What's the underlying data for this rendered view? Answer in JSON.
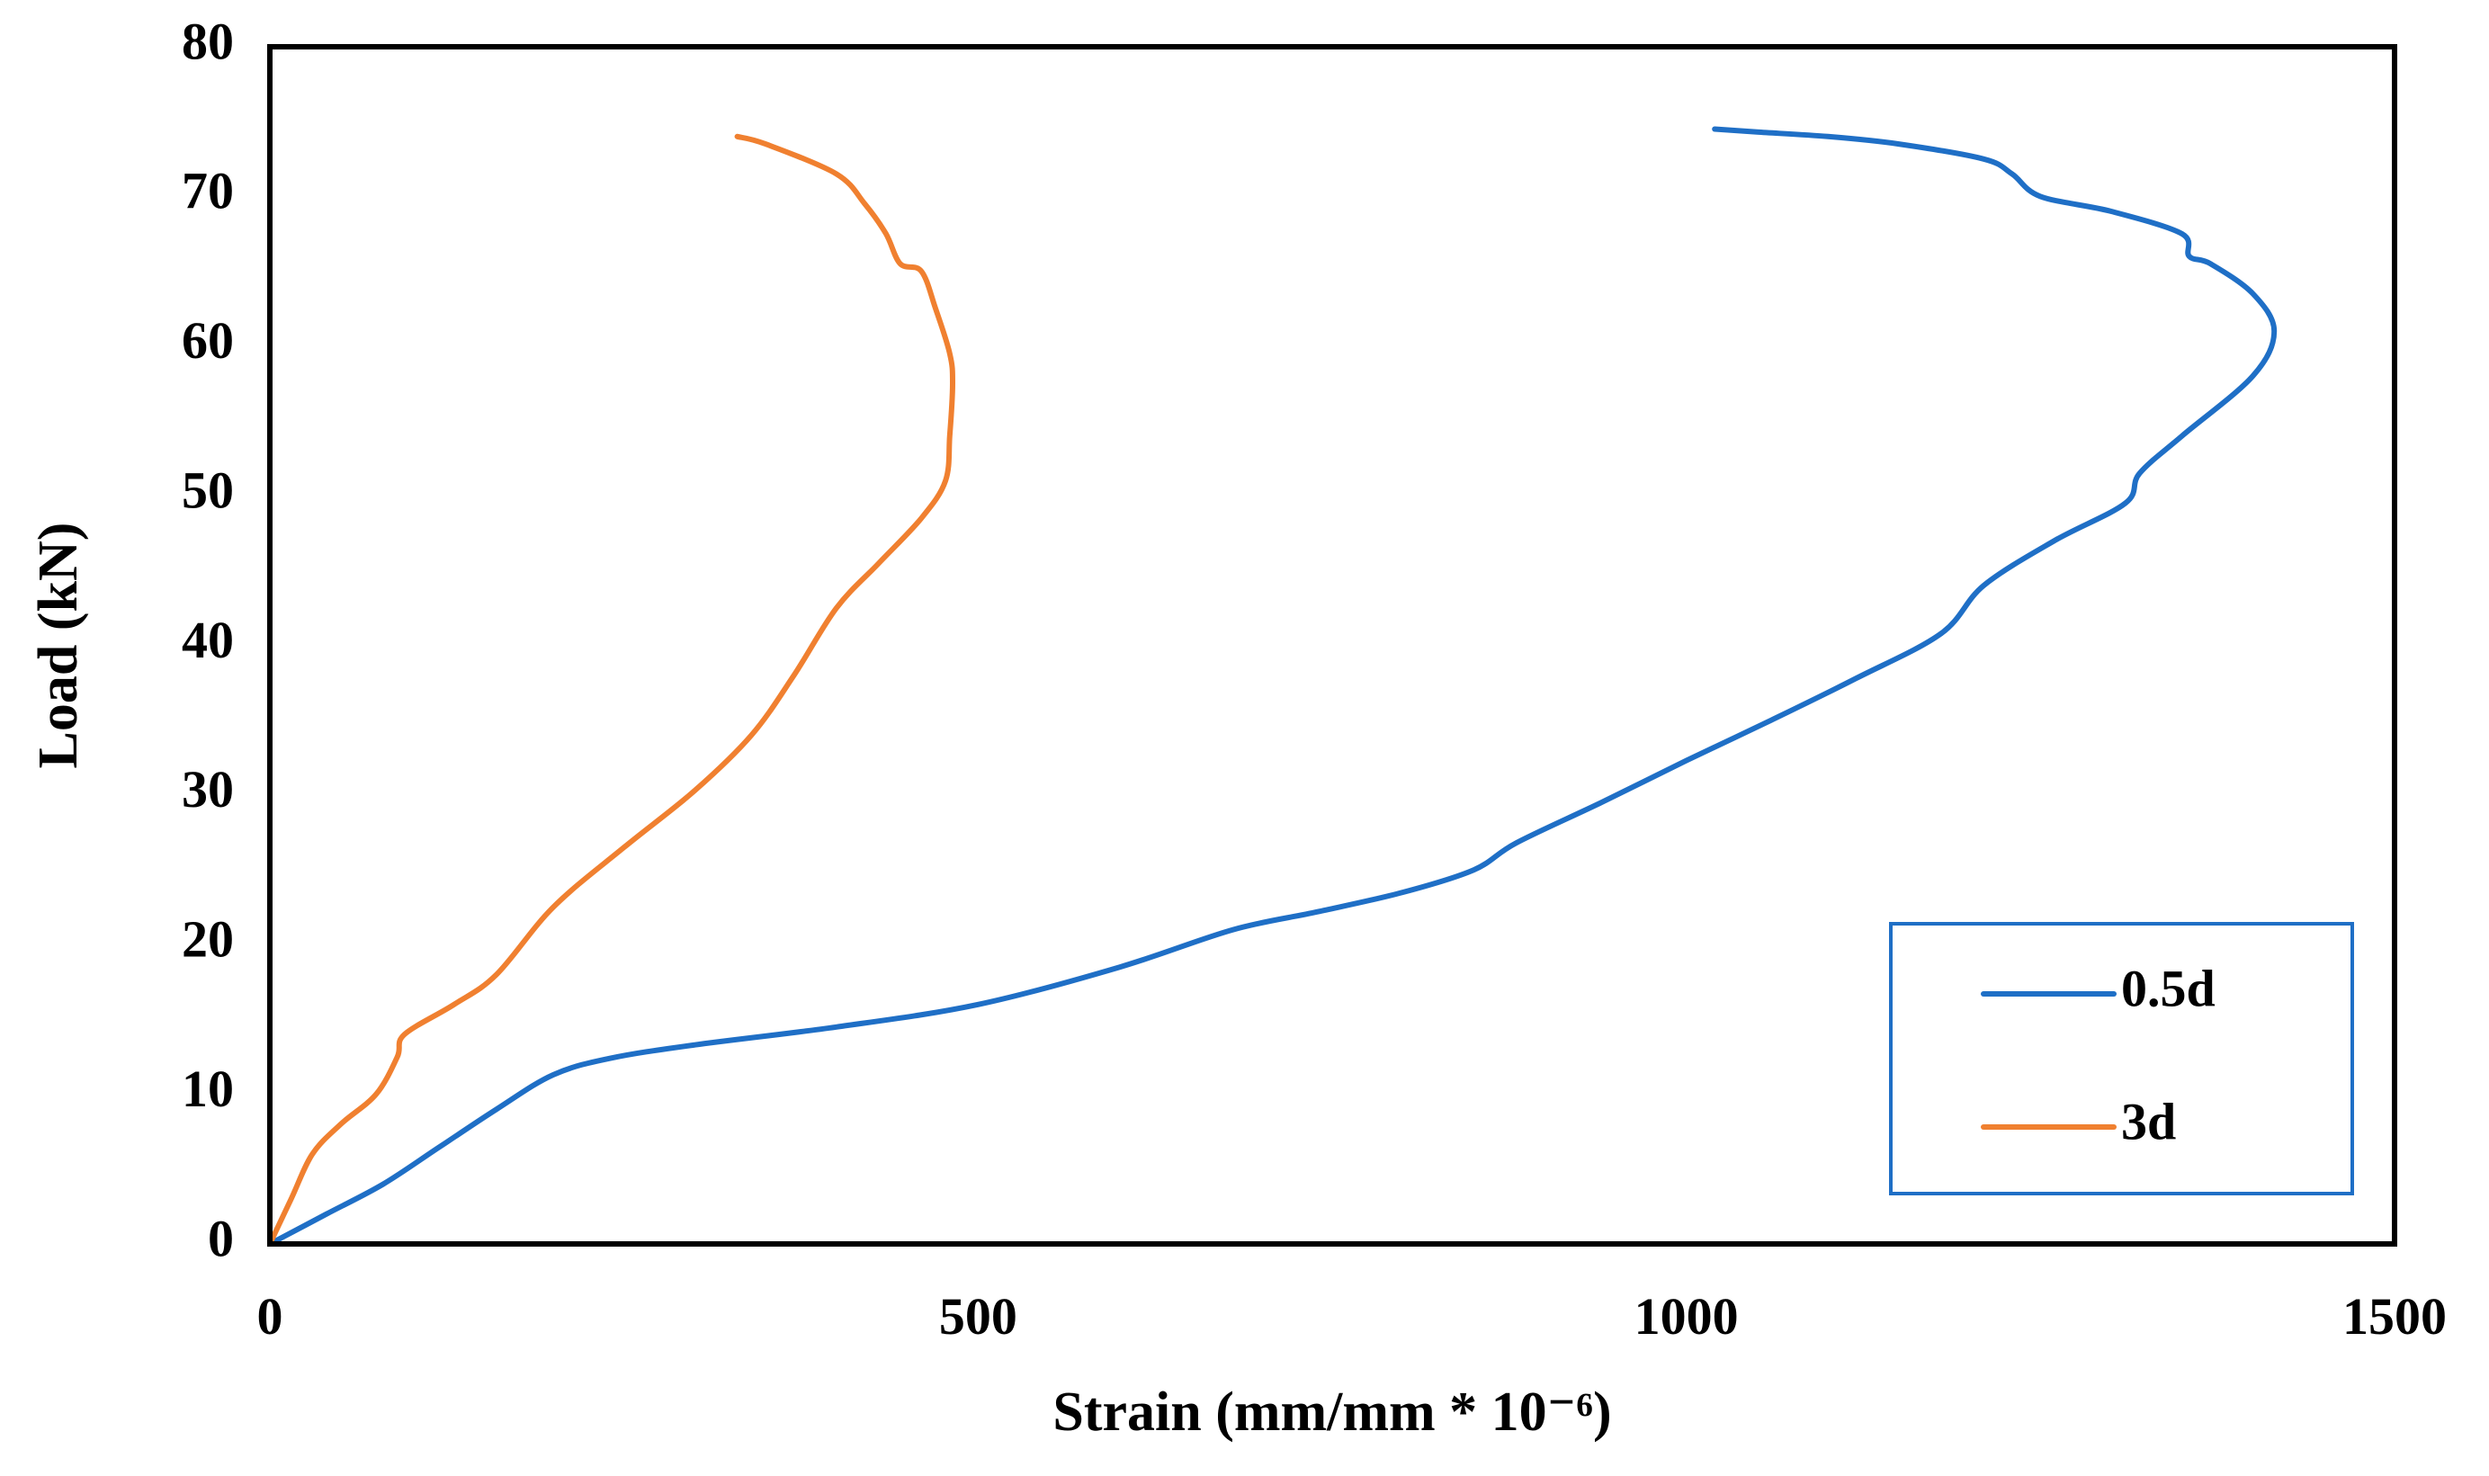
{
  "chart_data": {
    "type": "line",
    "xlabel": "Strain (mm/mm * 10⁻⁶)",
    "ylabel": "Load (kN)",
    "xlim": [
      0,
      1500
    ],
    "ylim": [
      0,
      80
    ],
    "x_ticks": [
      0,
      500,
      1000,
      1500
    ],
    "y_ticks": [
      0,
      10,
      20,
      30,
      40,
      50,
      60,
      70,
      80
    ],
    "grid": false,
    "legend_position": "bottom-right",
    "series": [
      {
        "name": "0.5d",
        "color": "#1f6fc6",
        "points": [
          [
            0,
            0
          ],
          [
            40,
            2
          ],
          [
            80,
            4
          ],
          [
            120,
            6.5
          ],
          [
            160,
            9
          ],
          [
            200,
            11.3
          ],
          [
            240,
            12.4
          ],
          [
            300,
            13.3
          ],
          [
            400,
            14.5
          ],
          [
            500,
            16
          ],
          [
            600,
            18.5
          ],
          [
            680,
            21
          ],
          [
            740,
            22.2
          ],
          [
            800,
            23.5
          ],
          [
            850,
            25
          ],
          [
            880,
            26.8
          ],
          [
            940,
            29.5
          ],
          [
            1000,
            32.3
          ],
          [
            1060,
            35
          ],
          [
            1120,
            37.8
          ],
          [
            1180,
            40.8
          ],
          [
            1210,
            44
          ],
          [
            1260,
            47
          ],
          [
            1310,
            49.5
          ],
          [
            1320,
            51.5
          ],
          [
            1350,
            54
          ],
          [
            1400,
            58
          ],
          [
            1415,
            61
          ],
          [
            1400,
            63.5
          ],
          [
            1370,
            65.5
          ],
          [
            1355,
            66
          ],
          [
            1350,
            67.5
          ],
          [
            1300,
            69
          ],
          [
            1250,
            70
          ],
          [
            1230,
            71.5
          ],
          [
            1210,
            72.5
          ],
          [
            1150,
            73.5
          ],
          [
            1100,
            74
          ],
          [
            1050,
            74.3
          ],
          [
            1020,
            74.5
          ]
        ]
      },
      {
        "name": "3d",
        "color": "#f08030",
        "points": [
          [
            0,
            0
          ],
          [
            15,
            3
          ],
          [
            30,
            6
          ],
          [
            50,
            8
          ],
          [
            75,
            10
          ],
          [
            90,
            12.5
          ],
          [
            95,
            14
          ],
          [
            130,
            16
          ],
          [
            160,
            18
          ],
          [
            200,
            22.5
          ],
          [
            250,
            26.5
          ],
          [
            300,
            30.3
          ],
          [
            340,
            34
          ],
          [
            370,
            38
          ],
          [
            400,
            42.5
          ],
          [
            430,
            45.5
          ],
          [
            460,
            48.5
          ],
          [
            477,
            51
          ],
          [
            480,
            54
          ],
          [
            482,
            57.5
          ],
          [
            480,
            59.5
          ],
          [
            470,
            62.5
          ],
          [
            460,
            65
          ],
          [
            445,
            65.5
          ],
          [
            435,
            67.5
          ],
          [
            420,
            69.5
          ],
          [
            400,
            71.5
          ],
          [
            350,
            73.5
          ],
          [
            330,
            74
          ]
        ]
      }
    ]
  }
}
